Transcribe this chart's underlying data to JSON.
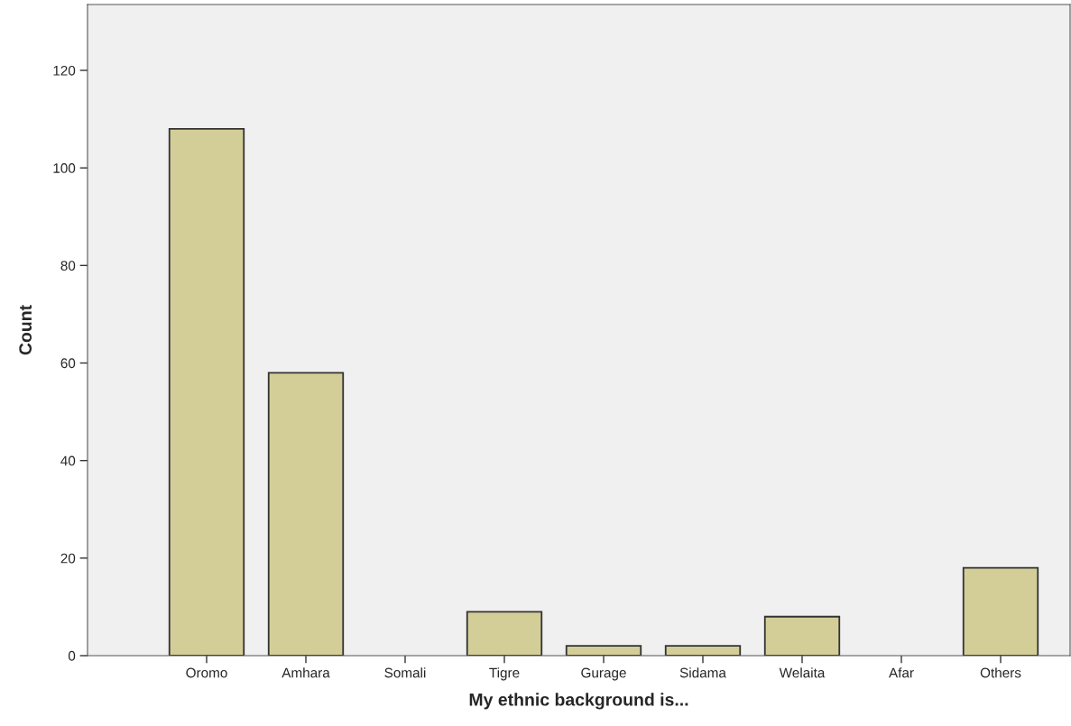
{
  "chart_data": {
    "type": "bar",
    "xlabel": "My ethnic background is...",
    "ylabel": "Count",
    "categories": [
      "Oromo",
      "Amhara",
      "Somali",
      "Tigre",
      "Gurage",
      "Sidama",
      "Welaita",
      "Afar",
      "Others"
    ],
    "values": [
      108,
      58,
      0,
      9,
      2,
      2,
      8,
      0,
      18
    ],
    "color": "#d3ce97",
    "ylim": [
      0,
      133.5
    ],
    "yticks": [
      0,
      20,
      40,
      60,
      80,
      100,
      120
    ],
    "grid": false
  }
}
